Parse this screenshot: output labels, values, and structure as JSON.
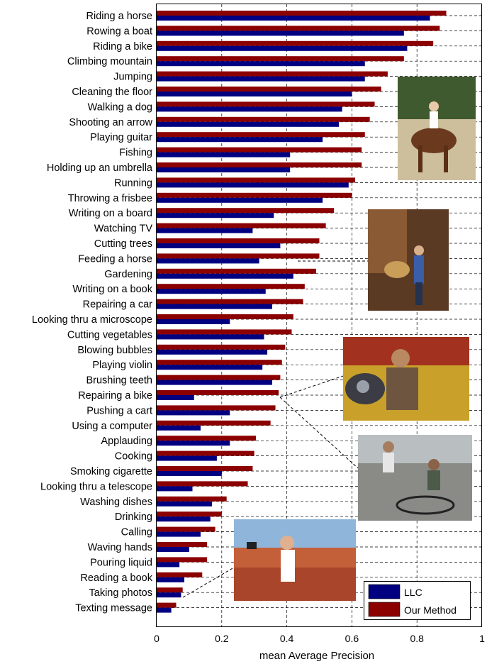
{
  "chart_data": {
    "type": "bar",
    "orientation": "horizontal",
    "xlabel": "mean Average Precision",
    "xlim": [
      0,
      1
    ],
    "xticks": [
      "0",
      "0.2",
      "0.4",
      "0.6",
      "0.8",
      "1"
    ],
    "grid": "dashed",
    "legend_position": "bottom-right",
    "categories": [
      "Riding a horse",
      "Rowing a boat",
      "Riding a bike",
      "Climbing mountain",
      "Jumping",
      "Cleaning the floor",
      "Walking a dog",
      "Shooting an arrow",
      "Playing guitar",
      "Fishing",
      "Holding up an umbrella",
      "Running",
      "Throwing a frisbee",
      "Writing on a board",
      "Watching TV",
      "Cutting trees",
      "Feeding a horse",
      "Gardening",
      "Writing on a book",
      "Repairing a car",
      "Looking thru a microscope",
      "Cutting vegetables",
      "Blowing bubbles",
      "Playing violin",
      "Brushing teeth",
      "Repairing a bike",
      "Pushing a cart",
      "Using a computer",
      "Applauding",
      "Cooking",
      "Smoking cigarette",
      "Looking thru a telescope",
      "Washing dishes",
      "Drinking",
      "Calling",
      "Waving hands",
      "Pouring liquid",
      "Reading a book",
      "Taking photos",
      "Texting message"
    ],
    "series": [
      {
        "name": "Our Method",
        "color": "#8b0000",
        "values": [
          0.89,
          0.87,
          0.85,
          0.76,
          0.71,
          0.69,
          0.67,
          0.655,
          0.64,
          0.63,
          0.63,
          0.61,
          0.6,
          0.545,
          0.52,
          0.5,
          0.5,
          0.49,
          0.455,
          0.45,
          0.42,
          0.415,
          0.395,
          0.385,
          0.38,
          0.375,
          0.365,
          0.35,
          0.305,
          0.3,
          0.295,
          0.28,
          0.215,
          0.2,
          0.18,
          0.155,
          0.155,
          0.14,
          0.08,
          0.06
        ]
      },
      {
        "name": "LLC",
        "color": "#000080",
        "values": [
          0.84,
          0.76,
          0.77,
          0.64,
          0.64,
          0.6,
          0.57,
          0.56,
          0.51,
          0.41,
          0.41,
          0.59,
          0.51,
          0.36,
          0.295,
          0.38,
          0.315,
          0.42,
          0.335,
          0.355,
          0.225,
          0.33,
          0.34,
          0.325,
          0.355,
          0.115,
          0.225,
          0.135,
          0.225,
          0.185,
          0.2,
          0.11,
          0.17,
          0.165,
          0.135,
          0.1,
          0.07,
          0.085,
          0.075,
          0.045
        ]
      }
    ],
    "legend": [
      "LLC",
      "Our Method"
    ]
  },
  "photos": [
    {
      "name": "riding-horse-photo",
      "connects_to": "Riding a horse"
    },
    {
      "name": "feeding-horse-photo",
      "connects_to": "Feeding a horse"
    },
    {
      "name": "repairing-bike-photo-1",
      "connects_to": "Repairing a bike"
    },
    {
      "name": "repairing-bike-photo-2",
      "connects_to": "Repairing a bike"
    },
    {
      "name": "taking-photos-photo",
      "connects_to": "Taking photos"
    }
  ]
}
